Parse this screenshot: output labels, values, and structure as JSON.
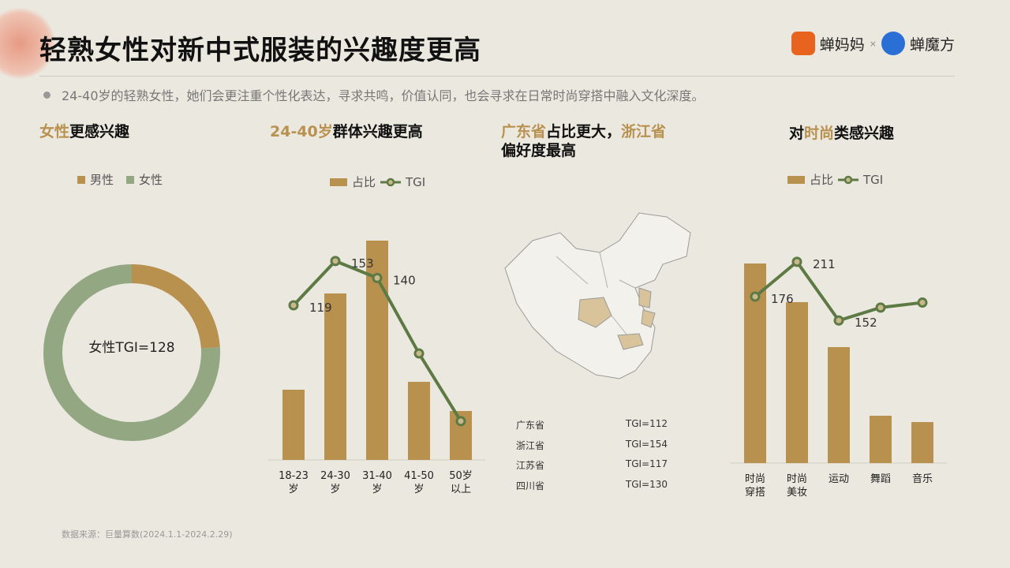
{
  "title": "轻熟女性对新中式服装的兴趣度更高",
  "logos": {
    "brand1": "蝉妈妈",
    "sep": "×",
    "brand2": "蝉魔方"
  },
  "summary": "24-40岁的轻熟女性，她们会更注重个性化表达，寻求共鸣，价值认同，也会寻求在日常时尚穿搭中融入文化深度。",
  "sections": {
    "gender": {
      "h_hi": "女性",
      "h_rest": "更感兴趣"
    },
    "age": {
      "h_hi": "24-40岁",
      "h_rest": "群体兴趣更高"
    },
    "region": {
      "h_hi1": "广东省",
      "h_mid": "占比更大，",
      "h_hi2": "浙江省",
      "h_line2": "偏好度最高"
    },
    "interest": {
      "h_pre": "对",
      "h_hi": "时尚",
      "h_rest": "类感兴趣"
    }
  },
  "colors": {
    "tan": "#b8914f",
    "green": "#5d7a44",
    "sage": "#93a882",
    "mapHighlight": "#d9c39a"
  },
  "source": "数据来源：巨量算数(2024.1.1-2024.2.29)",
  "chart_data": [
    {
      "type": "pie",
      "donut": true,
      "legend": [
        "男性",
        "女性"
      ],
      "values": [
        24,
        76
      ],
      "center_label": "女性TGI=128"
    },
    {
      "type": "bar+line",
      "categories": [
        "18-23\n岁",
        "24-30\n岁",
        "31-40\n岁",
        "41-50\n岁",
        "50岁\n以上"
      ],
      "legend": [
        "占比",
        "TGI"
      ],
      "series": [
        {
          "name": "占比",
          "type": "bar",
          "values": [
            89,
            211,
            278,
            99,
            62
          ]
        },
        {
          "name": "TGI",
          "type": "line",
          "values": [
            119,
            153,
            140,
            82,
            30
          ],
          "labels": [
            "119",
            "153",
            "140",
            "",
            ""
          ]
        }
      ]
    },
    {
      "type": "map",
      "highlighted": [
        "广东省",
        "浙江省",
        "江苏省",
        "四川省"
      ],
      "table": [
        [
          "广东省",
          "TGI=112"
        ],
        [
          "浙江省",
          "TGI=154"
        ],
        [
          "江苏省",
          "TGI=117"
        ],
        [
          "四川省",
          "TGI=130"
        ]
      ]
    },
    {
      "type": "bar+line",
      "categories": [
        "时尚\n穿搭",
        "时尚\n美妆",
        "运动",
        "舞蹈",
        "音乐"
      ],
      "legend": [
        "占比",
        "TGI"
      ],
      "series": [
        {
          "name": "占比",
          "type": "bar",
          "values": [
            253,
            204,
            147,
            60,
            52
          ]
        },
        {
          "name": "TGI",
          "type": "line",
          "values": [
            176,
            211,
            152,
            165,
            170
          ],
          "labels": [
            "176",
            "211",
            "152",
            "",
            ""
          ]
        }
      ]
    }
  ]
}
